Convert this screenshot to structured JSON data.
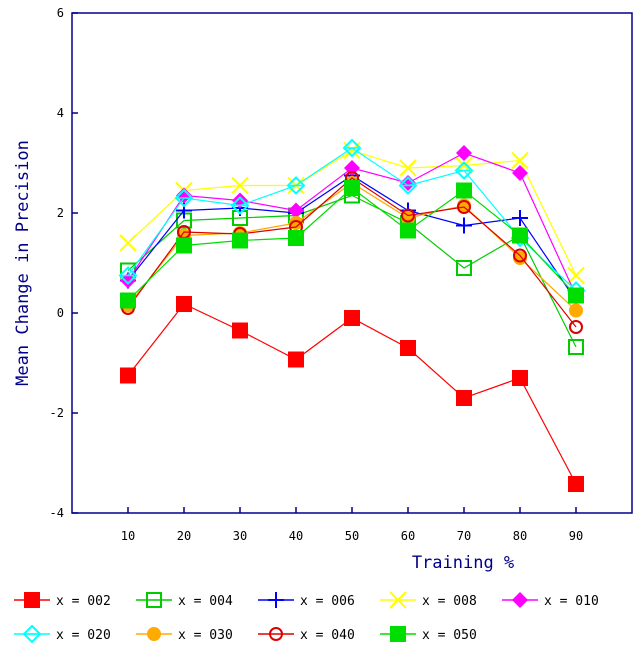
{
  "chart_data": {
    "type": "line",
    "title": "",
    "xlabel": "Training %",
    "ylabel": "Mean Change in Precision",
    "x": [
      10,
      20,
      30,
      40,
      50,
      60,
      70,
      80,
      90
    ],
    "xlim": [
      0,
      100
    ],
    "ylim": [
      -4,
      6
    ],
    "yticks": [
      -4,
      -2,
      0,
      2,
      4,
      6
    ],
    "xticks": [
      10,
      20,
      30,
      40,
      50,
      60,
      70,
      80,
      90
    ],
    "grid": false,
    "legend_position": "bottom",
    "series": [
      {
        "name": "x = 002",
        "color": "#ff0000",
        "marker": "filled-square",
        "values": [
          -1.25,
          0.18,
          -0.35,
          -0.93,
          -0.1,
          -0.7,
          -1.7,
          -1.3,
          -3.42
        ]
      },
      {
        "name": "x = 004",
        "color": "#00cc00",
        "marker": "open-square",
        "values": [
          0.85,
          1.85,
          1.9,
          1.95,
          2.35,
          1.8,
          0.9,
          1.55,
          -0.68
        ]
      },
      {
        "name": "x = 006",
        "color": "#0000ff",
        "marker": "plus",
        "values": [
          0.65,
          2.05,
          2.1,
          2.0,
          2.75,
          2.05,
          1.75,
          1.9,
          0.25
        ]
      },
      {
        "name": "x = 008",
        "color": "#ffff00",
        "marker": "x",
        "values": [
          1.4,
          2.45,
          2.55,
          2.55,
          3.25,
          2.9,
          2.95,
          3.05,
          0.75
        ]
      },
      {
        "name": "x = 010",
        "color": "#ff00ff",
        "marker": "diamond",
        "values": [
          0.65,
          2.35,
          2.25,
          2.05,
          2.9,
          2.6,
          3.2,
          2.8,
          0.35
        ]
      },
      {
        "name": "x = 020",
        "color": "#00ffff",
        "marker": "open-diamond",
        "values": [
          0.75,
          2.3,
          2.15,
          2.55,
          3.3,
          2.55,
          2.85,
          1.5,
          0.45
        ]
      },
      {
        "name": "x = 030",
        "color": "#ffaa00",
        "marker": "filled-circle",
        "values": [
          0.15,
          1.55,
          1.6,
          1.8,
          2.6,
          1.9,
          2.15,
          1.1,
          0.05
        ]
      },
      {
        "name": "x = 040",
        "color": "#dd0000",
        "marker": "open-circle",
        "values": [
          0.1,
          1.62,
          1.58,
          1.72,
          2.7,
          1.95,
          2.12,
          1.15,
          -0.28
        ]
      },
      {
        "name": "x = 050",
        "color": "#00dd00",
        "marker": "filled-square",
        "values": [
          0.25,
          1.35,
          1.45,
          1.5,
          2.5,
          1.65,
          2.45,
          1.55,
          0.35
        ]
      }
    ]
  }
}
